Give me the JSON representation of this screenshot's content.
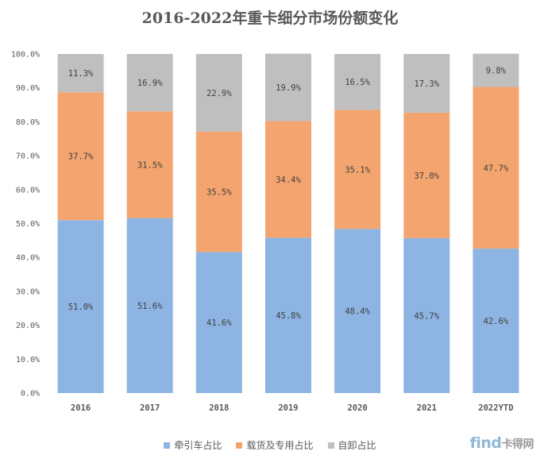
{
  "chart_data": {
    "type": "bar",
    "stacked": true,
    "title": "2016-2022年重卡细分市场份额变化",
    "categories": [
      "2016",
      "2017",
      "2018",
      "2019",
      "2020",
      "2021",
      "2022YTD"
    ],
    "series": [
      {
        "name": "牵引车占比",
        "color": "#8db4e2",
        "values": [
          51.0,
          51.6,
          41.6,
          45.8,
          48.4,
          45.7,
          42.6
        ]
      },
      {
        "name": "载货及专用占比",
        "color": "#f4a56f",
        "values": [
          37.7,
          31.5,
          35.5,
          34.4,
          35.1,
          37.0,
          47.7
        ]
      },
      {
        "name": "自卸占比",
        "color": "#bfbfbf",
        "values": [
          11.3,
          16.9,
          22.9,
          19.9,
          16.5,
          17.3,
          9.8
        ]
      }
    ],
    "ylim": [
      0,
      100
    ],
    "yticks": [
      "0.0%",
      "10.0%",
      "20.0%",
      "30.0%",
      "40.0%",
      "50.0%",
      "60.0%",
      "70.0%",
      "80.0%",
      "90.0%",
      "100.0%"
    ],
    "legend_position": "bottom",
    "grid": false
  },
  "watermark": {
    "brand": "find",
    "cn": "卡得网"
  }
}
